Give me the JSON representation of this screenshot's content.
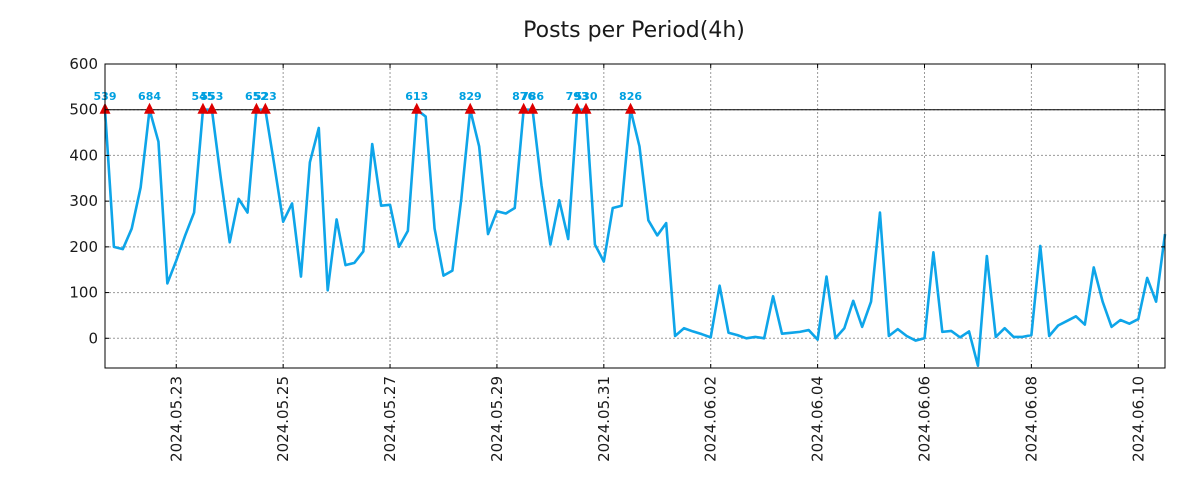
{
  "chart_data": {
    "type": "line",
    "title": "Posts per Period(4h)",
    "xlabel": "",
    "ylabel": "",
    "ylim": [
      -65,
      600
    ],
    "yticks": [
      0,
      100,
      200,
      300,
      400,
      500,
      600
    ],
    "x_index_range": [
      0,
      119
    ],
    "xticks": [
      {
        "index": 8,
        "label": "2024.05.23"
      },
      {
        "index": 20,
        "label": "2024.05.25"
      },
      {
        "index": 32,
        "label": "2024.05.27"
      },
      {
        "index": 44,
        "label": "2024.05.29"
      },
      {
        "index": 56,
        "label": "2024.05.31"
      },
      {
        "index": 68,
        "label": "2024.06.02"
      },
      {
        "index": 80,
        "label": "2024.06.04"
      },
      {
        "index": 92,
        "label": "2024.06.06"
      },
      {
        "index": 104,
        "label": "2024.06.08"
      },
      {
        "index": 116,
        "label": "2024.06.10"
      }
    ],
    "cap_value": 500,
    "line_color": "#0ea5e9",
    "cap_line_color": "#000000",
    "marker_color": "#dd0000",
    "label_color": "#00a0e0",
    "series": [
      {
        "name": "posts",
        "values": [
          500,
          200,
          195,
          240,
          330,
          500,
          430,
          120,
          170,
          225,
          275,
          500,
          500,
          350,
          210,
          305,
          275,
          500,
          500,
          380,
          255,
          295,
          135,
          385,
          460,
          105,
          260,
          160,
          165,
          190,
          425,
          290,
          292,
          200,
          235,
          500,
          485,
          240,
          137,
          148,
          305,
          500,
          420,
          228,
          278,
          273,
          285,
          500,
          500,
          335,
          205,
          302,
          217,
          500,
          500,
          205,
          168,
          285,
          290,
          500,
          420,
          258,
          225,
          252,
          5,
          22,
          15,
          9,
          2,
          115,
          12,
          7,
          0,
          3,
          0,
          92,
          10,
          12,
          14,
          18,
          -3,
          135,
          0,
          22,
          82,
          25,
          80,
          275,
          5,
          20,
          5,
          -5,
          0,
          188,
          14,
          16,
          2,
          15,
          -60,
          180,
          3,
          22,
          3,
          3,
          7,
          202,
          5,
          28,
          38,
          48,
          30,
          155,
          80,
          25,
          40,
          32,
          42,
          132,
          80,
          228
        ]
      }
    ],
    "capped_points": [
      {
        "index": 0,
        "label": "539"
      },
      {
        "index": 5,
        "label": "684"
      },
      {
        "index": 11,
        "label": "545"
      },
      {
        "index": 12,
        "label": "553"
      },
      {
        "index": 17,
        "label": "652"
      },
      {
        "index": 18,
        "label": "523"
      },
      {
        "index": 35,
        "label": "613"
      },
      {
        "index": 41,
        "label": "829"
      },
      {
        "index": 47,
        "label": "876"
      },
      {
        "index": 48,
        "label": "786"
      },
      {
        "index": 53,
        "label": "793"
      },
      {
        "index": 54,
        "label": "530"
      },
      {
        "index": 59,
        "label": "826"
      }
    ]
  }
}
